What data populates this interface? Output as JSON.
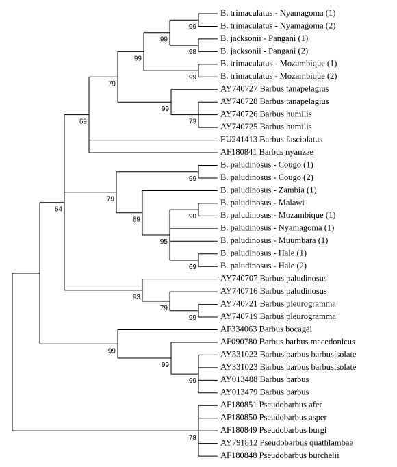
{
  "leaves": [
    "B. trimaculatus - Nyamagoma (1)",
    "B. trimaculatus - Nyamagoma (2)",
    "B. jacksonii - Pangani (1)",
    "B. jacksonii - Pangani (2)",
    "B. trimaculatus - Mozambique (1)",
    "B. trimaculatus - Mozambique (2)",
    "AY740727 Barbus tanapelagius",
    "AY740728 Barbus tanapelagius",
    "AY740726 Barbus humilis",
    "AY740725 Barbus humilis",
    "EU241413 Barbus fasciolatus",
    "AF180841 Barbus nyanzae",
    "B. paludinosus - Cougo (1)",
    "B. paludinosus - Cougo (2)",
    "B. paludinosus - Zambia (1)",
    "B. paludinosus - Malawi",
    "B. paludinosus - Mozambique (1)",
    "B. paludinosus - Nyamagoma (1)",
    "B. paludinosus - Muumbara (1)",
    "B. paludinosus - Hale (1)",
    "B. paludinosus - Hale (2)",
    "AY740707 Barbus paludinosus",
    "AY740716 Barbus paludinosus",
    "AY740721 Barbus pleurogramma",
    "AY740719 Barbus pleurogramma",
    "AF334063 Barbus bocagei",
    "AF090780 Barbus barbus macedonicus",
    "AY331022 Barbus barbus barbusisolate",
    "AY331023 Barbus barbus barbusisolate",
    "AY013488 Barbus barbus",
    "AY013479 Barbus barbus",
    "AF180851 Pseudobarbus afer",
    "AF180850 Pseudobarbus asper",
    "AF180849 Pseudobarbus burgi",
    "AY791812 Pseudobarbus quathlambae",
    "AF180848 Pseudobarbus burchelii"
  ],
  "supports": [
    "99",
    "99",
    "99",
    "98",
    "79",
    "99",
    "69",
    "99",
    "73",
    "64",
    "99",
    "79",
    "90",
    "89",
    "95",
    "69",
    "93",
    "79",
    "99",
    "99",
    "99",
    "99",
    "78"
  ]
}
